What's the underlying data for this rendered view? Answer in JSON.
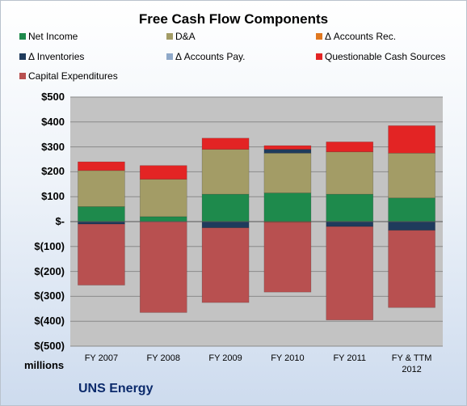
{
  "chart_data": {
    "type": "bar",
    "stacked": true,
    "title": "Free Cash Flow Components",
    "categories": [
      "FY 2007",
      "FY 2008",
      "FY 2009",
      "FY 2010",
      "FY 2011",
      "FY & TTM 2012"
    ],
    "category_lines": [
      [
        "FY 2007"
      ],
      [
        "FY 2008"
      ],
      [
        "FY 2009"
      ],
      [
        "FY 2010"
      ],
      [
        "FY 2011"
      ],
      [
        "FY & TTM",
        "2012"
      ]
    ],
    "ylim": [
      -500,
      500
    ],
    "y_ticks": [
      500,
      400,
      300,
      200,
      100,
      0,
      -100,
      -200,
      -300,
      -400,
      -500
    ],
    "y_tick_labels": [
      "$500",
      "$400",
      "$300",
      "$200",
      "$100",
      "$-",
      "$(100)",
      "$(200)",
      "$(300)",
      "$(400)",
      "$(500)"
    ],
    "y_unit_label": "millions",
    "legend_position": "top",
    "grid": true,
    "series": [
      {
        "name": "Net Income",
        "color": "#1e8a4c",
        "values": [
          60,
          20,
          110,
          115,
          110,
          95
        ]
      },
      {
        "name": "D&A",
        "color": "#a39c66",
        "values": [
          145,
          150,
          180,
          160,
          170,
          180
        ]
      },
      {
        "name": "Δ Accounts Rec.",
        "color": "#e07820",
        "values": [
          0,
          0,
          0,
          -3,
          0,
          0
        ]
      },
      {
        "name": "Δ Inventories",
        "color": "#1f3b5c",
        "values": [
          -10,
          0,
          -25,
          15,
          -20,
          -35
        ]
      },
      {
        "name": "Δ Accounts Pay.",
        "color": "#8fa9c9",
        "values": [
          0,
          0,
          0,
          0,
          0,
          0
        ]
      },
      {
        "name": "Questionable Cash Sources",
        "color": "#e32424",
        "values": [
          35,
          55,
          45,
          15,
          40,
          110
        ]
      },
      {
        "name": "Capital Expenditures",
        "color": "#b85050",
        "values": [
          -245,
          -365,
          -300,
          -280,
          -375,
          -310
        ]
      }
    ]
  },
  "company": "UNS Energy"
}
